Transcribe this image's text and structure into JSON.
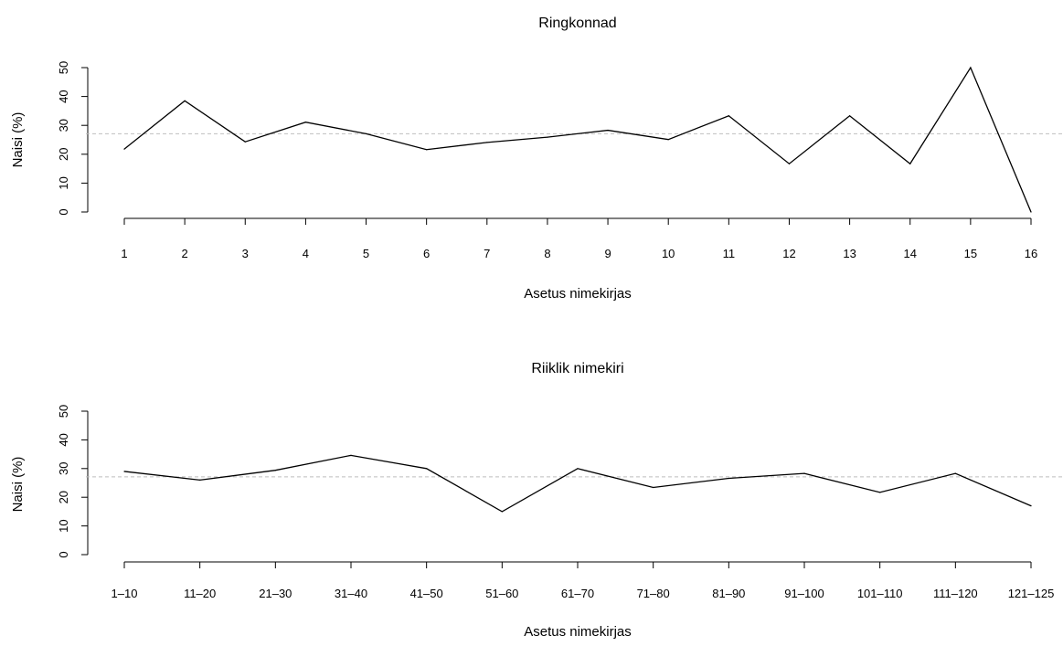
{
  "chart_data": [
    {
      "type": "line",
      "title": "Ringkonnad",
      "xlabel": "Asetus nimekirjas",
      "ylabel": "Naisi (%)",
      "categories": [
        "1",
        "2",
        "3",
        "4",
        "5",
        "6",
        "7",
        "8",
        "9",
        "10",
        "11",
        "12",
        "13",
        "14",
        "15",
        "16"
      ],
      "values": [
        21.8,
        38.5,
        24.3,
        31.1,
        27.1,
        21.6,
        24.1,
        25.9,
        28.3,
        25.1,
        33.3,
        16.7,
        33.3,
        16.7,
        50.0,
        0.0
      ],
      "yticks": [
        "0",
        "10",
        "20",
        "30",
        "40",
        "50"
      ],
      "ylim": [
        0,
        50
      ],
      "reference_line": 27.1,
      "grid": false
    },
    {
      "type": "line",
      "title": "Riiklik nimekiri",
      "xlabel": "Asetus nimekirjas",
      "ylabel": "Naisi (%)",
      "categories": [
        "1–10",
        "11–20",
        "21–30",
        "31–40",
        "41–50",
        "51–60",
        "61–70",
        "71–80",
        "81–90",
        "91–100",
        "101–110",
        "111–120",
        "121–125"
      ],
      "values": [
        29.0,
        26.0,
        29.4,
        34.6,
        30.0,
        15.0,
        30.0,
        23.4,
        26.6,
        28.3,
        21.7,
        28.3,
        17.0
      ],
      "yticks": [
        "0",
        "10",
        "20",
        "30",
        "40",
        "50"
      ],
      "ylim": [
        0,
        50
      ],
      "reference_line": 27.1,
      "grid": false
    }
  ]
}
